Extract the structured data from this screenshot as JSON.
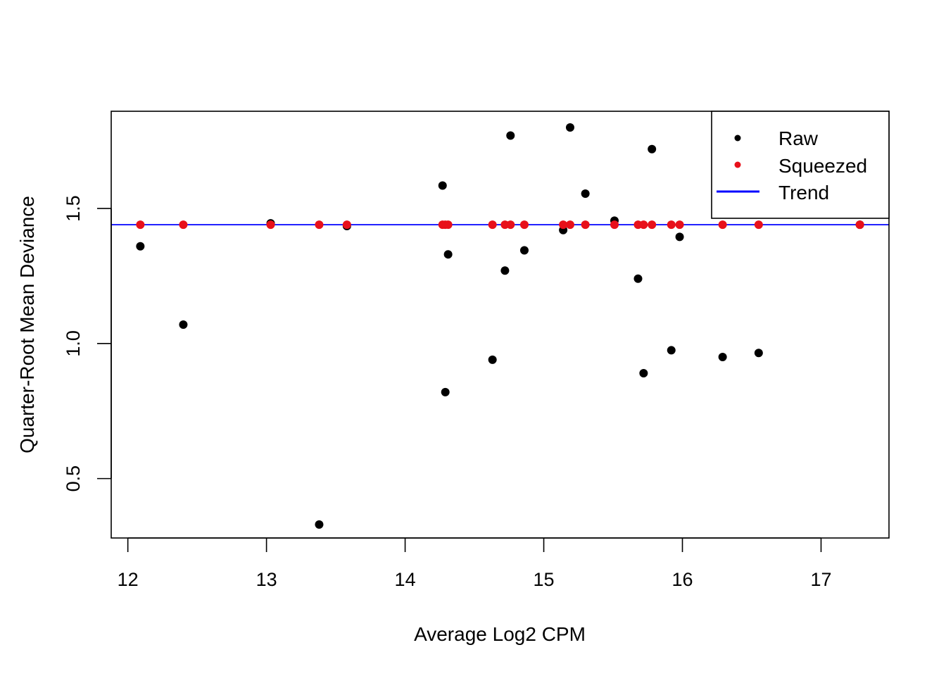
{
  "chart_data": {
    "type": "scatter",
    "title": "",
    "xlabel": "Average Log2 CPM",
    "ylabel": "Quarter-Root Mean Deviance",
    "xlim": [
      11.88,
      17.49
    ],
    "ylim": [
      0.28,
      1.86
    ],
    "x_ticks": [
      12,
      13,
      14,
      15,
      16,
      17
    ],
    "y_ticks": [
      0.5,
      1.0,
      1.5
    ],
    "x_tick_labels": [
      "12",
      "13",
      "14",
      "15",
      "16",
      "17"
    ],
    "y_tick_labels": [
      "0.5",
      "1.0",
      "1.5"
    ],
    "grid": false,
    "legend_position": "top-right",
    "legend": [
      "Raw",
      "Squeezed",
      "Trend"
    ],
    "colors": {
      "raw": "#000000",
      "squeezed": "#e8101a",
      "trend": "#0000ff"
    },
    "series": [
      {
        "name": "Raw",
        "points": [
          [
            12.09,
            1.36
          ],
          [
            12.4,
            1.07
          ],
          [
            13.03,
            1.445
          ],
          [
            13.38,
            0.33
          ],
          [
            13.58,
            1.435
          ],
          [
            14.27,
            1.585
          ],
          [
            14.29,
            0.82
          ],
          [
            14.31,
            1.33
          ],
          [
            14.63,
            0.94
          ],
          [
            14.72,
            1.27
          ],
          [
            14.76,
            1.77
          ],
          [
            14.86,
            1.345
          ],
          [
            15.14,
            1.42
          ],
          [
            15.19,
            1.8
          ],
          [
            15.3,
            1.555
          ],
          [
            15.51,
            1.455
          ],
          [
            15.68,
            1.24
          ],
          [
            15.72,
            0.89
          ],
          [
            15.78,
            1.72
          ],
          [
            15.92,
            0.975
          ],
          [
            15.98,
            1.395
          ],
          [
            16.29,
            0.95
          ],
          [
            16.55,
            0.965
          ],
          [
            17.28,
            1.44
          ]
        ]
      },
      {
        "name": "Squeezed",
        "points": [
          [
            12.09,
            1.44
          ],
          [
            12.4,
            1.44
          ],
          [
            13.03,
            1.44
          ],
          [
            13.38,
            1.44
          ],
          [
            13.58,
            1.44
          ],
          [
            14.27,
            1.44
          ],
          [
            14.29,
            1.44
          ],
          [
            14.31,
            1.44
          ],
          [
            14.63,
            1.44
          ],
          [
            14.72,
            1.44
          ],
          [
            14.76,
            1.44
          ],
          [
            14.86,
            1.44
          ],
          [
            15.14,
            1.44
          ],
          [
            15.19,
            1.44
          ],
          [
            15.3,
            1.44
          ],
          [
            15.51,
            1.44
          ],
          [
            15.68,
            1.44
          ],
          [
            15.72,
            1.44
          ],
          [
            15.78,
            1.44
          ],
          [
            15.92,
            1.44
          ],
          [
            15.98,
            1.44
          ],
          [
            16.29,
            1.44
          ],
          [
            16.55,
            1.44
          ],
          [
            17.28,
            1.44
          ]
        ]
      },
      {
        "name": "Trend",
        "y": 1.44
      }
    ]
  }
}
